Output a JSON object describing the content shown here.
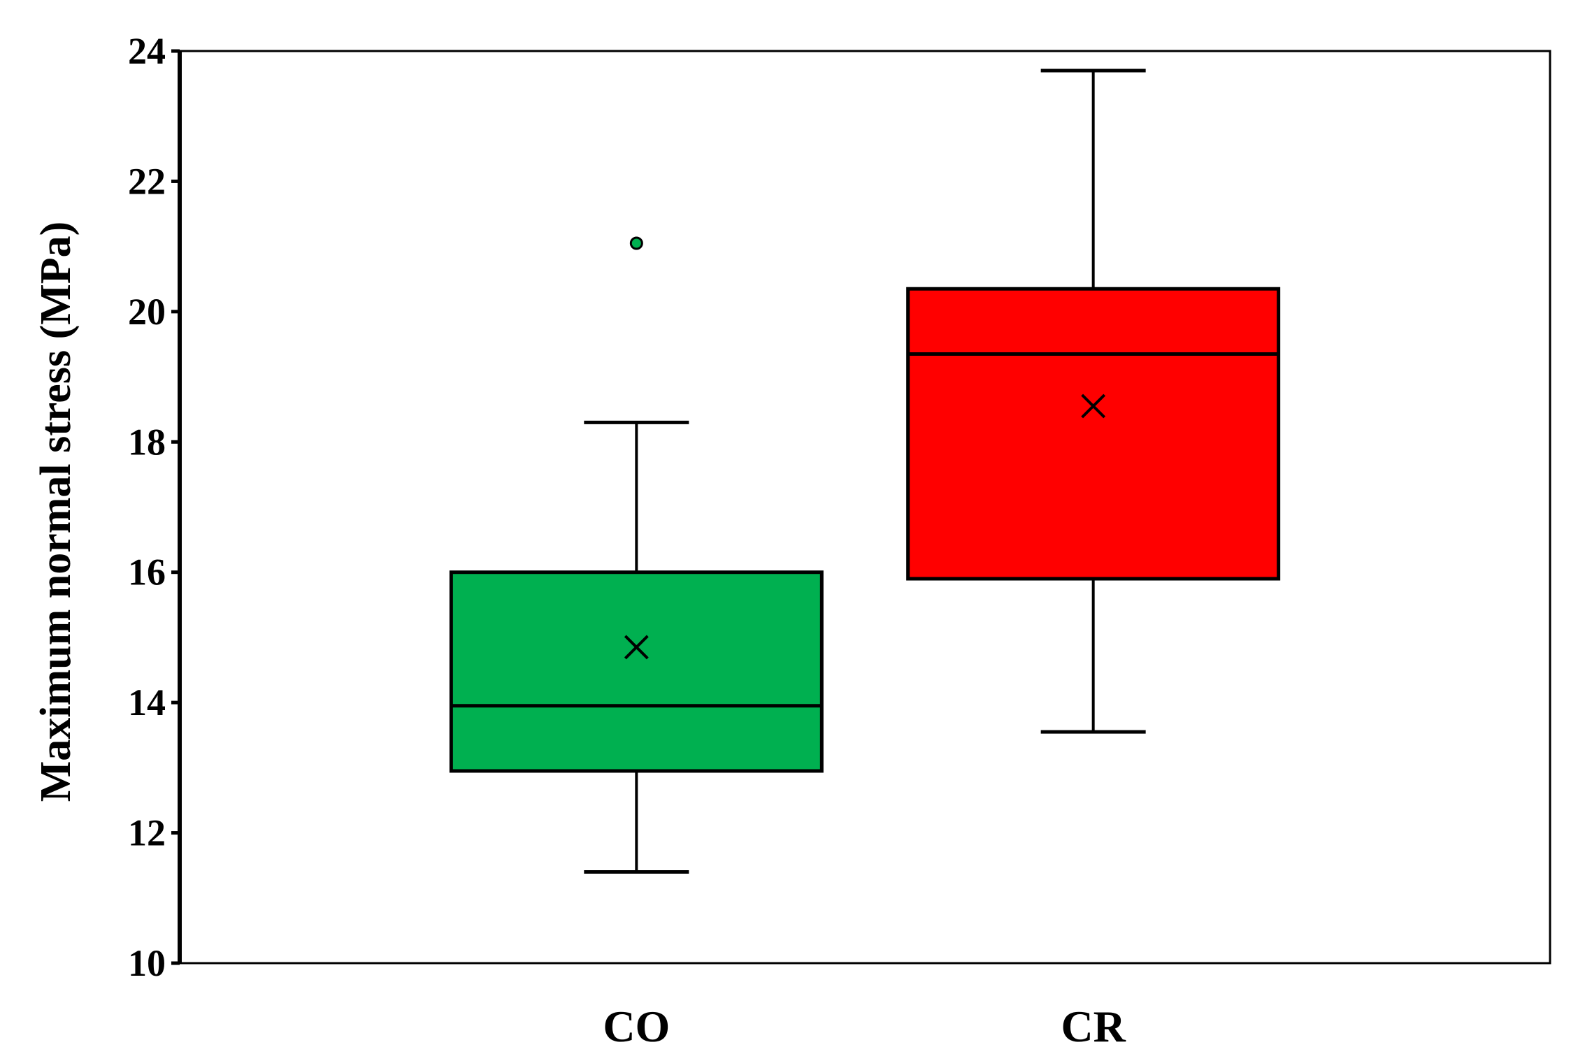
{
  "chart_data": {
    "type": "box",
    "title": "",
    "xlabel": "",
    "ylabel": "Maximum normal stress (MPa)",
    "ylim": [
      10,
      24
    ],
    "yticks": [
      10,
      12,
      14,
      16,
      18,
      20,
      22,
      24
    ],
    "yticks_labels": [
      "10",
      "12",
      "14",
      "16",
      "18",
      "20",
      "22",
      "24"
    ],
    "grid": false,
    "legend": "none",
    "categories": [
      "CO",
      "CR"
    ],
    "boxes": [
      {
        "category": "CO",
        "color": "#00b050",
        "whisker_low": 11.4,
        "q1": 12.95,
        "median": 13.95,
        "q3": 16.0,
        "whisker_high": 18.3,
        "mean": 14.85,
        "outliers": [
          21.05
        ]
      },
      {
        "category": "CR",
        "color": "#ff0000",
        "whisker_low": 13.55,
        "q1": 15.9,
        "median": 19.35,
        "q3": 20.35,
        "whisker_high": 23.7,
        "mean": 18.55,
        "outliers": []
      }
    ]
  }
}
